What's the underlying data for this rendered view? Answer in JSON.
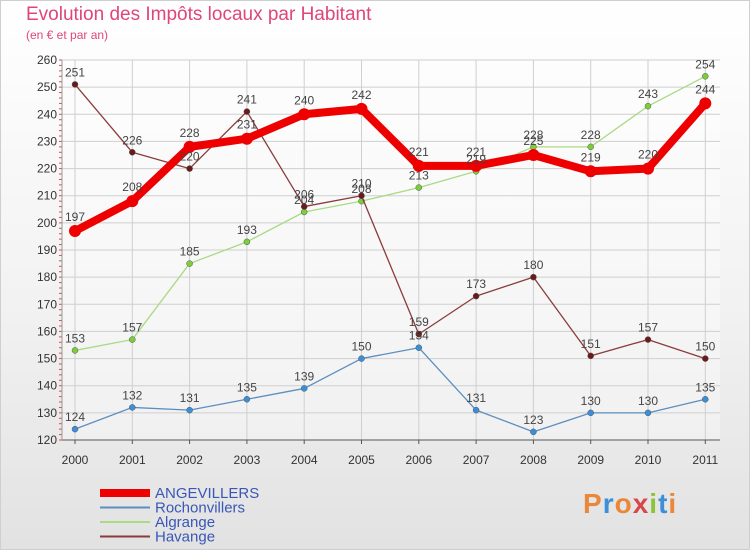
{
  "title": "Evolution des Impôts locaux par Habitant",
  "subtitle": "(en € et par an)",
  "logo": {
    "text": "Proxiti",
    "colors": [
      "#e9873a",
      "#3f8fd8",
      "#e9873a",
      "#d84848",
      "#8ac43a",
      "#3f8fd8",
      "#e9873a"
    ]
  },
  "chart_data": {
    "type": "line",
    "title": "Evolution des Impôts locaux par Habitant",
    "subtitle": "(en € et par an)",
    "xlabel": "",
    "ylabel": "",
    "categories": [
      "2000",
      "2001",
      "2002",
      "2003",
      "2004",
      "2005",
      "2006",
      "2007",
      "2008",
      "2009",
      "2010",
      "2011"
    ],
    "ylim": [
      120,
      260
    ],
    "yticks": [
      120,
      130,
      140,
      150,
      160,
      170,
      180,
      190,
      200,
      210,
      220,
      230,
      240,
      250,
      260
    ],
    "grid": true,
    "legend_position": "bottom-left",
    "series": [
      {
        "name": "Rochonvillers",
        "color": "#5c8fbf",
        "marker": "#3a8fd8",
        "width": 1.3,
        "values": [
          124,
          132,
          131,
          135,
          139,
          150,
          154,
          131,
          123,
          130,
          130,
          135
        ]
      },
      {
        "name": "Algrange",
        "color": "#a9da84",
        "marker": "#7ccd3a",
        "width": 1.3,
        "values": [
          153,
          157,
          185,
          193,
          204,
          208,
          213,
          219,
          228,
          228,
          243,
          254
        ]
      },
      {
        "name": "Havange",
        "color": "#8a3c3c",
        "marker": "#6b1a1a",
        "width": 1.3,
        "values": [
          251,
          226,
          220,
          241,
          206,
          210,
          159,
          173,
          180,
          151,
          157,
          150
        ]
      },
      {
        "name": "ANGEVILLERS",
        "color": "#ee0000",
        "marker": "#ee0000",
        "width": 8,
        "values": [
          197,
          208,
          228,
          231,
          240,
          242,
          221,
          221,
          225,
          219,
          220,
          244
        ]
      }
    ],
    "legend_order": [
      "ANGEVILLERS",
      "Rochonvillers",
      "Algrange",
      "Havange"
    ]
  }
}
